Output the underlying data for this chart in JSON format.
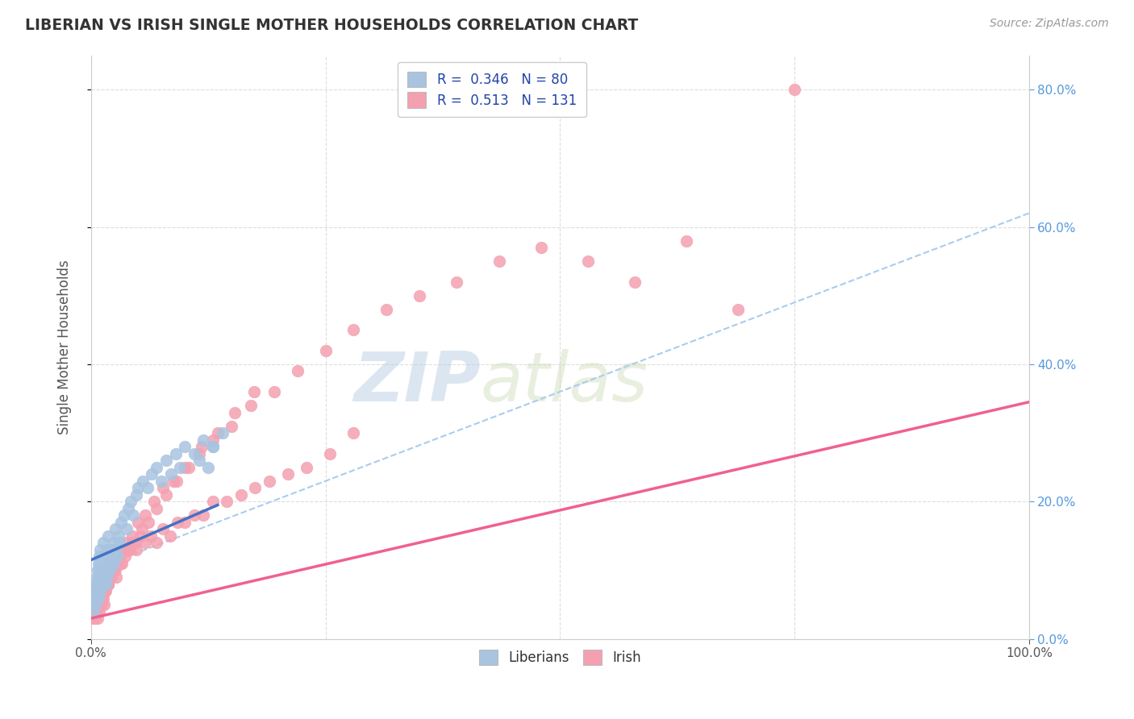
{
  "title": "LIBERIAN VS IRISH SINGLE MOTHER HOUSEHOLDS CORRELATION CHART",
  "source_text": "Source: ZipAtlas.com",
  "ylabel": "Single Mother Households",
  "xlim": [
    0.0,
    1.0
  ],
  "ylim": [
    0.0,
    0.85
  ],
  "legend_R1": "R =  0.346",
  "legend_N1": "N = 80",
  "legend_R2": "R =  0.513",
  "legend_N2": "N = 131",
  "liberian_color": "#a8c4e0",
  "irish_color": "#f4a0b0",
  "liberian_line_color": "#4472c4",
  "irish_line_color": "#f06090",
  "watermark_zip": "ZIP",
  "watermark_atlas": "atlas",
  "background_color": "#ffffff",
  "grid_color": "#dddddd",
  "liberian_scatter_x": [
    0.003,
    0.004,
    0.005,
    0.005,
    0.006,
    0.006,
    0.007,
    0.007,
    0.008,
    0.008,
    0.009,
    0.009,
    0.01,
    0.01,
    0.011,
    0.011,
    0.012,
    0.012,
    0.013,
    0.013,
    0.014,
    0.014,
    0.015,
    0.015,
    0.016,
    0.016,
    0.017,
    0.017,
    0.018,
    0.018,
    0.019,
    0.019,
    0.02,
    0.02,
    0.021,
    0.022,
    0.023,
    0.024,
    0.025,
    0.026,
    0.027,
    0.028,
    0.029,
    0.03,
    0.032,
    0.035,
    0.038,
    0.04,
    0.042,
    0.045,
    0.048,
    0.05,
    0.055,
    0.06,
    0.065,
    0.07,
    0.075,
    0.08,
    0.085,
    0.09,
    0.095,
    0.1,
    0.11,
    0.115,
    0.12,
    0.125,
    0.13,
    0.14,
    0.003,
    0.004,
    0.004,
    0.005,
    0.006,
    0.007,
    0.008,
    0.009,
    0.01,
    0.011,
    0.012,
    0.13
  ],
  "liberian_scatter_y": [
    0.05,
    0.06,
    0.06,
    0.08,
    0.07,
    0.09,
    0.08,
    0.1,
    0.09,
    0.11,
    0.1,
    0.12,
    0.11,
    0.13,
    0.1,
    0.12,
    0.09,
    0.11,
    0.1,
    0.14,
    0.09,
    0.11,
    0.1,
    0.12,
    0.08,
    0.11,
    0.09,
    0.13,
    0.1,
    0.15,
    0.11,
    0.13,
    0.1,
    0.12,
    0.11,
    0.13,
    0.12,
    0.11,
    0.14,
    0.16,
    0.13,
    0.12,
    0.15,
    0.14,
    0.17,
    0.18,
    0.16,
    0.19,
    0.2,
    0.18,
    0.21,
    0.22,
    0.23,
    0.22,
    0.24,
    0.25,
    0.23,
    0.26,
    0.24,
    0.27,
    0.25,
    0.28,
    0.27,
    0.26,
    0.29,
    0.25,
    0.28,
    0.3,
    0.04,
    0.05,
    0.07,
    0.06,
    0.08,
    0.07,
    0.06,
    0.08,
    0.07,
    0.09,
    0.08,
    0.28
  ],
  "irish_scatter_x": [
    0.002,
    0.003,
    0.003,
    0.004,
    0.004,
    0.005,
    0.005,
    0.006,
    0.006,
    0.007,
    0.007,
    0.008,
    0.008,
    0.009,
    0.009,
    0.01,
    0.01,
    0.011,
    0.011,
    0.012,
    0.012,
    0.013,
    0.014,
    0.015,
    0.015,
    0.016,
    0.017,
    0.018,
    0.019,
    0.02,
    0.021,
    0.022,
    0.024,
    0.026,
    0.028,
    0.03,
    0.033,
    0.036,
    0.04,
    0.044,
    0.048,
    0.053,
    0.058,
    0.064,
    0.07,
    0.077,
    0.084,
    0.092,
    0.1,
    0.11,
    0.12,
    0.13,
    0.145,
    0.16,
    0.175,
    0.19,
    0.21,
    0.23,
    0.255,
    0.28,
    0.005,
    0.006,
    0.007,
    0.008,
    0.009,
    0.01,
    0.012,
    0.014,
    0.016,
    0.018,
    0.02,
    0.024,
    0.028,
    0.033,
    0.038,
    0.044,
    0.05,
    0.058,
    0.067,
    0.077,
    0.088,
    0.1,
    0.115,
    0.13,
    0.15,
    0.17,
    0.195,
    0.22,
    0.25,
    0.28,
    0.315,
    0.35,
    0.39,
    0.435,
    0.48,
    0.53,
    0.58,
    0.635,
    0.69,
    0.75,
    0.003,
    0.004,
    0.005,
    0.006,
    0.007,
    0.008,
    0.009,
    0.01,
    0.011,
    0.012,
    0.013,
    0.014,
    0.016,
    0.018,
    0.021,
    0.024,
    0.027,
    0.031,
    0.036,
    0.041,
    0.047,
    0.054,
    0.061,
    0.07,
    0.08,
    0.091,
    0.104,
    0.118,
    0.135,
    0.153,
    0.174
  ],
  "irish_scatter_y": [
    0.04,
    0.05,
    0.03,
    0.06,
    0.04,
    0.07,
    0.05,
    0.08,
    0.04,
    0.07,
    0.05,
    0.06,
    0.08,
    0.07,
    0.05,
    0.09,
    0.06,
    0.08,
    0.06,
    0.07,
    0.09,
    0.08,
    0.1,
    0.09,
    0.07,
    0.08,
    0.09,
    0.08,
    0.1,
    0.09,
    0.1,
    0.09,
    0.11,
    0.1,
    0.11,
    0.12,
    0.11,
    0.13,
    0.13,
    0.14,
    0.13,
    0.15,
    0.14,
    0.15,
    0.14,
    0.16,
    0.15,
    0.17,
    0.17,
    0.18,
    0.18,
    0.2,
    0.2,
    0.21,
    0.22,
    0.23,
    0.24,
    0.25,
    0.27,
    0.3,
    0.04,
    0.05,
    0.06,
    0.05,
    0.07,
    0.06,
    0.08,
    0.07,
    0.09,
    0.08,
    0.1,
    0.11,
    0.12,
    0.13,
    0.14,
    0.15,
    0.17,
    0.18,
    0.2,
    0.22,
    0.23,
    0.25,
    0.27,
    0.29,
    0.31,
    0.34,
    0.36,
    0.39,
    0.42,
    0.45,
    0.48,
    0.5,
    0.52,
    0.55,
    0.57,
    0.55,
    0.52,
    0.58,
    0.48,
    0.8,
    0.04,
    0.03,
    0.05,
    0.04,
    0.03,
    0.05,
    0.04,
    0.06,
    0.05,
    0.07,
    0.06,
    0.05,
    0.07,
    0.08,
    0.09,
    0.1,
    0.09,
    0.11,
    0.12,
    0.13,
    0.14,
    0.16,
    0.17,
    0.19,
    0.21,
    0.23,
    0.25,
    0.28,
    0.3,
    0.33,
    0.36
  ],
  "liberian_trend_x": [
    0.0,
    0.135
  ],
  "liberian_trend_y": [
    0.115,
    0.195
  ],
  "irish_trend_x": [
    0.0,
    1.0
  ],
  "irish_trend_y": [
    0.03,
    0.345
  ],
  "dash_trend_x": [
    0.0,
    1.0
  ],
  "dash_trend_y": [
    0.1,
    0.62
  ]
}
